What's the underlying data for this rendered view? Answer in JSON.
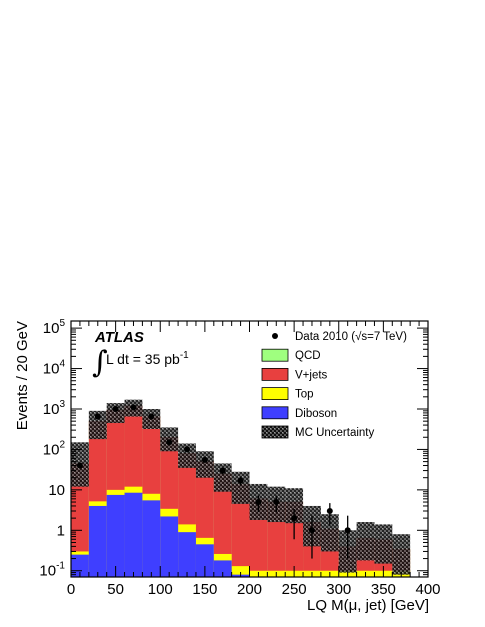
{
  "chart_data": {
    "type": "bar",
    "style": "stacked-step-histogram-with-data-points",
    "experiment_label": "ATLAS",
    "luminosity_label": "L dt = 35 pb",
    "luminosity_superscript": "-1",
    "xlabel": "LQ M(μ, jet) [GeV]",
    "ylabel": "Events / 20 GeV",
    "xlim": [
      0,
      400
    ],
    "ylim": [
      0.07,
      150000
    ],
    "yscale": "log",
    "x_ticks": [
      "0",
      "50",
      "100",
      "150",
      "200",
      "250",
      "300",
      "350",
      "400"
    ],
    "y_ticks": [
      {
        "base": "10",
        "exp": "5"
      },
      {
        "base": "10",
        "exp": "4"
      },
      {
        "base": "10",
        "exp": "3"
      },
      {
        "base": "10",
        "exp": "2"
      },
      {
        "base": "10",
        "exp": ""
      },
      {
        "base": "1",
        "exp": ""
      },
      {
        "base": "10",
        "exp": "-1"
      }
    ],
    "legend_position": "top-right",
    "bin_edges": [
      0,
      20,
      40,
      60,
      80,
      100,
      120,
      140,
      160,
      180,
      200,
      220,
      240,
      260,
      280,
      300,
      320,
      340,
      360,
      380
    ],
    "series": [
      {
        "name": "Diboson",
        "color": "#3f3fff",
        "values": [
          0.25,
          4,
          7.5,
          8.5,
          5.5,
          2.2,
          0.9,
          0.45,
          0.18,
          0.08,
          0.05,
          0.05,
          0.05,
          0.05,
          0.05,
          0.05,
          0.05,
          0.05,
          0.05
        ]
      },
      {
        "name": "Top",
        "color": "#ffff00",
        "values": [
          0.05,
          1.2,
          2.5,
          3.5,
          2.5,
          1.2,
          0.5,
          0.2,
          0.08,
          0.05,
          0.05,
          0.05,
          0.05,
          0.05,
          0.05,
          0.05,
          0.05,
          0.05,
          0.05
        ]
      },
      {
        "name": "V+jets",
        "color": "#e8403f",
        "values": [
          45,
          500,
          950,
          1200,
          650,
          200,
          80,
          50,
          25,
          14,
          6,
          5,
          5,
          1.5,
          1,
          0.3,
          0.55,
          0.5,
          0.25
        ]
      },
      {
        "name": "QCD",
        "color": "#9fff7f",
        "values": [
          0,
          0,
          0,
          0,
          0,
          0,
          0,
          0,
          0,
          0,
          0,
          0,
          0,
          0,
          0,
          0,
          0,
          0,
          0
        ]
      }
    ],
    "mc_uncertainty": {
      "name": "MC Uncertainty",
      "low": [
        12,
        180,
        450,
        650,
        320,
        90,
        35,
        20,
        9,
        4.5,
        1.8,
        1.6,
        1.5,
        0.4,
        0.3,
        0.09,
        0.18,
        0.15,
        0.08
      ],
      "high": [
        150,
        900,
        1400,
        1700,
        1000,
        350,
        140,
        90,
        45,
        28,
        14,
        12,
        11,
        4,
        2.5,
        1,
        1.6,
        1.4,
        0.8
      ]
    },
    "data_points": {
      "name": "Data 2010 (√s=7 TeV)",
      "x": [
        10,
        30,
        50,
        70,
        90,
        110,
        130,
        150,
        170,
        190,
        210,
        230,
        250,
        270,
        290,
        310
      ],
      "y": [
        40,
        650,
        1000,
        1100,
        650,
        150,
        100,
        55,
        30,
        17,
        5,
        5,
        2,
        1,
        3,
        1
      ],
      "err_low": [
        6,
        25,
        32,
        33,
        25,
        12,
        10,
        7.4,
        5.5,
        4.1,
        2.2,
        2.2,
        1.4,
        0.8,
        1.7,
        0.8
      ],
      "err_high": [
        6,
        25,
        32,
        33,
        25,
        12,
        10,
        7.4,
        5.5,
        4.1,
        2.2,
        2.2,
        1.4,
        1.3,
        1.7,
        1.3
      ]
    },
    "legend": [
      {
        "kind": "marker",
        "label": "Data 2010 (√s=7 TeV)"
      },
      {
        "kind": "fill",
        "label": "QCD",
        "color": "#9fff7f"
      },
      {
        "kind": "fill",
        "label": "V+jets",
        "color": "#e8403f"
      },
      {
        "kind": "fill",
        "label": "Top",
        "color": "#ffff00"
      },
      {
        "kind": "fill",
        "label": "Diboson",
        "color": "#3f3fff"
      },
      {
        "kind": "hatch",
        "label": "MC Uncertainty"
      }
    ]
  }
}
